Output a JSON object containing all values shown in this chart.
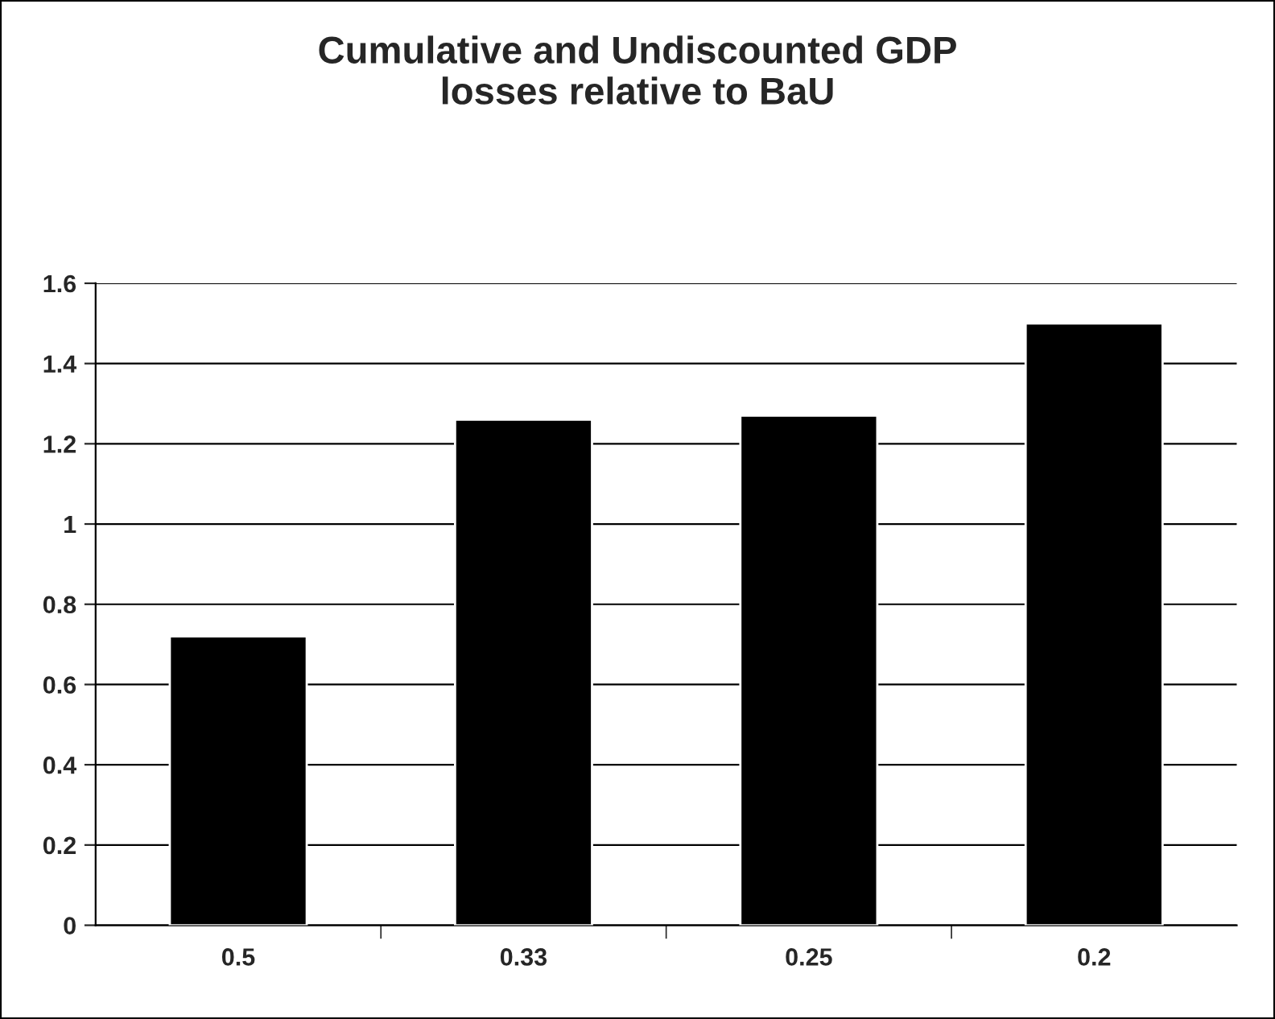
{
  "chart_data": {
    "type": "bar",
    "title": "Cumulative and Undiscounted GDP\nlosses relative to BaU",
    "categories": [
      "0.5",
      "0.33",
      "0.25",
      "0.2"
    ],
    "values": [
      0.72,
      1.26,
      1.27,
      1.5
    ],
    "color": "#000000",
    "ylim": [
      0,
      1.6
    ],
    "yticks": [
      0,
      {
        "value": 0.2,
        "label": "0.2"
      },
      {
        "value": 0.4,
        "label": "0.4"
      },
      {
        "value": 0.6,
        "label": "0.6"
      },
      {
        "value": 0.8,
        "label": "0.8"
      },
      1,
      {
        "value": 1.2,
        "label": "1.2"
      },
      {
        "value": 1.4,
        "label": "1.4"
      },
      {
        "value": 1.6,
        "label": "1.6"
      }
    ],
    "grid": "y",
    "legend": false
  }
}
